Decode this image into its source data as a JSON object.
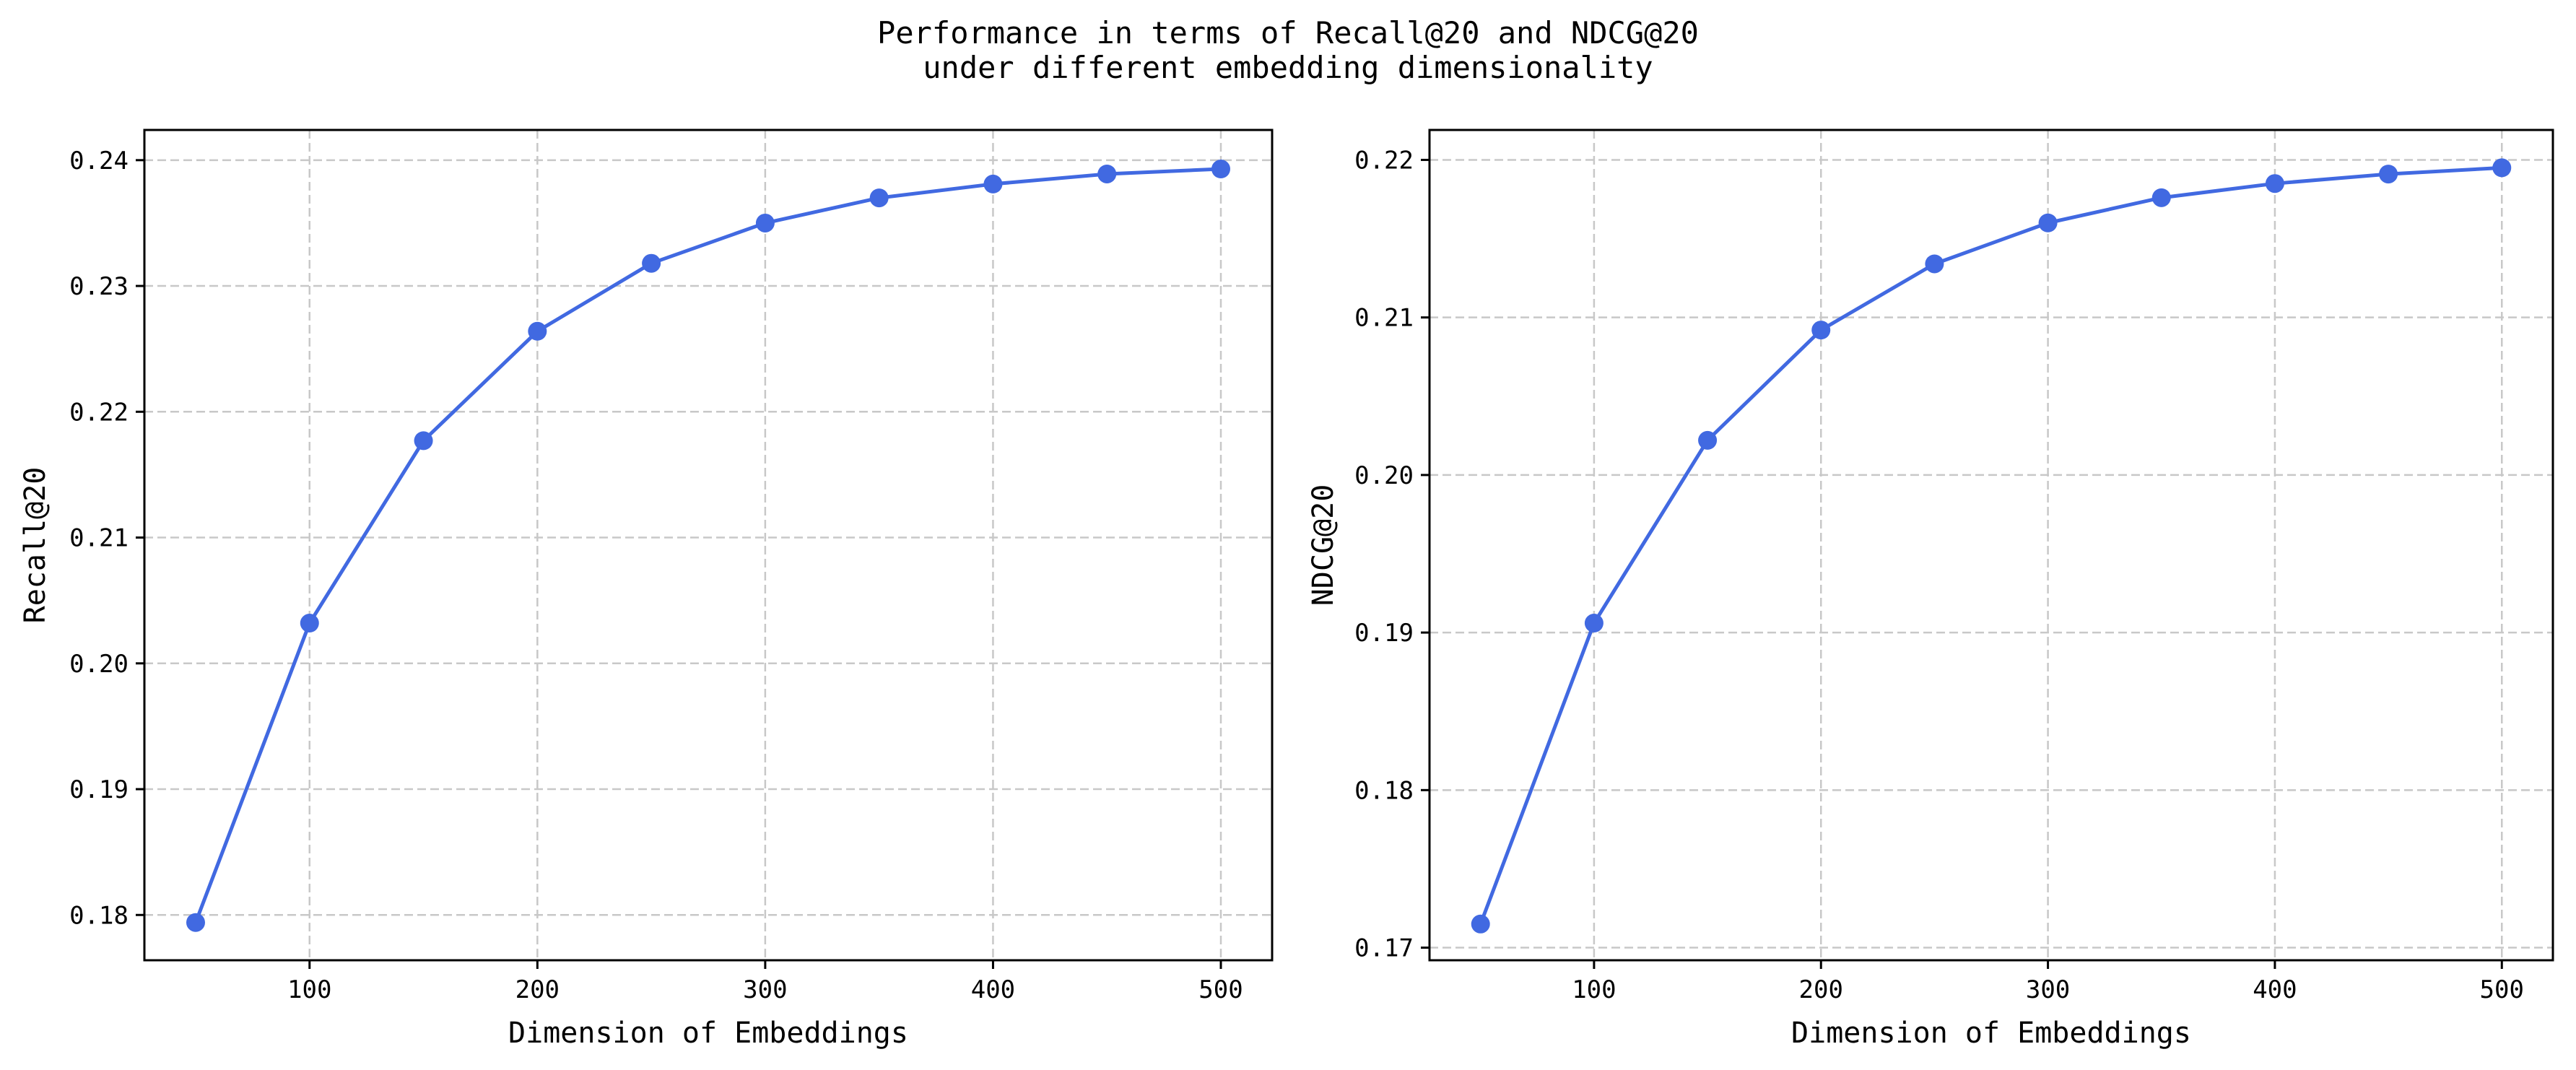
{
  "figure": {
    "title_line1": "Performance in terms of Recall@20 and NDCG@20",
    "title_line2": "under different embedding dimensionality"
  },
  "chart_data": [
    {
      "type": "line",
      "xlabel": "Dimension of Embeddings",
      "ylabel": "Recall@20",
      "x": [
        50,
        100,
        150,
        200,
        250,
        300,
        350,
        400,
        450,
        500
      ],
      "values": [
        0.1794,
        0.2032,
        0.2177,
        0.2264,
        0.2318,
        0.235,
        0.237,
        0.2381,
        0.2389,
        0.2393
      ],
      "xticks": [
        100,
        200,
        300,
        400,
        500
      ],
      "xtick_labels": [
        "100",
        "200",
        "300",
        "400",
        "500"
      ],
      "yticks": [
        0.18,
        0.19,
        0.2,
        0.21,
        0.22,
        0.23,
        0.24
      ],
      "ytick_labels": [
        "0.18",
        "0.19",
        "0.20",
        "0.21",
        "0.22",
        "0.23",
        "0.24"
      ],
      "xlim": [
        27.5,
        522.5
      ],
      "ylim": [
        0.1764,
        0.2424
      ],
      "grid": true,
      "color": "#4169e1",
      "marker": "circle"
    },
    {
      "type": "line",
      "xlabel": "Dimension of Embeddings",
      "ylabel": "NDCG@20",
      "x": [
        50,
        100,
        150,
        200,
        250,
        300,
        350,
        400,
        450,
        500
      ],
      "values": [
        0.1715,
        0.1906,
        0.2022,
        0.2092,
        0.2134,
        0.216,
        0.2176,
        0.2185,
        0.2191,
        0.2195
      ],
      "xticks": [
        100,
        200,
        300,
        400,
        500
      ],
      "xtick_labels": [
        "100",
        "200",
        "300",
        "400",
        "500"
      ],
      "yticks": [
        0.17,
        0.18,
        0.19,
        0.2,
        0.21,
        0.22
      ],
      "ytick_labels": [
        "0.17",
        "0.18",
        "0.19",
        "0.20",
        "0.21",
        "0.22"
      ],
      "xlim": [
        27.5,
        522.5
      ],
      "ylim": [
        0.1692,
        0.2219
      ],
      "grid": true,
      "color": "#4169e1",
      "marker": "circle"
    }
  ]
}
